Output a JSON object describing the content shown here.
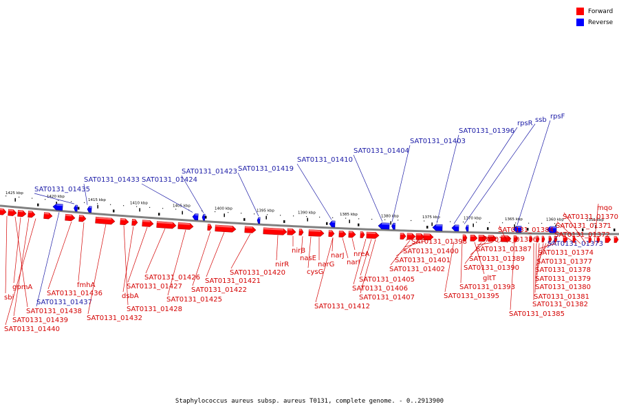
{
  "colors": {
    "forward": "#ff0000",
    "reverse": "#0000ff",
    "backbone": "#808080",
    "label_forward": "#d40000",
    "label_reverse": "#1a1aa6"
  },
  "legend": [
    {
      "label": "Forward",
      "color": "#ff0000"
    },
    {
      "label": "Reverse",
      "color": "#0000ff"
    }
  ],
  "caption": "Staphylococcus aureus subsp. aureus T0131, complete genome. - 0..2913900",
  "ticks": [
    "1425 kbp",
    "1420 kbp",
    "1415 kbp",
    "1410 kbp",
    "1405 kbp",
    "1400 kbp",
    "1395 kbp",
    "1390 kbp",
    "1385 kbp",
    "1380 kbp",
    "1375 kbp",
    "1370 kbp",
    "1365 kbp",
    "1360 kbp",
    "1355 kbp"
  ],
  "reverse_labels": [
    "SAT0131_01435",
    "SAT0131_01433",
    "SAT0131_01424",
    "SAT0131_01423",
    "SAT0131_01419",
    "SAT0131_01410",
    "SAT0131_01404",
    "SAT0131_01403",
    "SAT0131_01396",
    "rpsR",
    "ssb",
    "rpsF",
    "SAT0131_01437",
    "SAT0131_01373"
  ],
  "forward_labels": [
    "sbi",
    "gpmA",
    "SAT0131_01440",
    "SAT0131_01439",
    "SAT0131_01438",
    "SAT0131_01436",
    "fmhA",
    "SAT0131_01432",
    "SAT0131_01428",
    "dsbA",
    "SAT0131_01427",
    "SAT0131_01426",
    "SAT0131_01425",
    "SAT0131_01422",
    "SAT0131_01421",
    "SAT0131_01420",
    "nirR",
    "nirB",
    "nasE",
    "cysG",
    "narG",
    "narJ",
    "narI",
    "nreA",
    "SAT0131_01412",
    "SAT0131_01407",
    "SAT0131_01406",
    "SAT0131_01405",
    "SAT0131_01402",
    "SAT0131_01401",
    "SAT0131_01400",
    "SAT0131_01398",
    "SAT0131_01395",
    "SAT0131_01393",
    "gltT",
    "SAT0131_01390",
    "SAT0131_01389",
    "SAT0131_01387",
    "SAT0131_01386",
    "SAT0131_01385",
    "SAT0131_01384",
    "SAT0131_01382",
    "SAT0131_01381",
    "SAT0131_01380",
    "SAT0131_01379",
    "SAT0131_01378",
    "SAT0131_01377",
    "SAT0131_01374",
    "SAT0131_01372",
    "SAT0131_01371",
    "SAT0131_01370",
    "mqo"
  ]
}
